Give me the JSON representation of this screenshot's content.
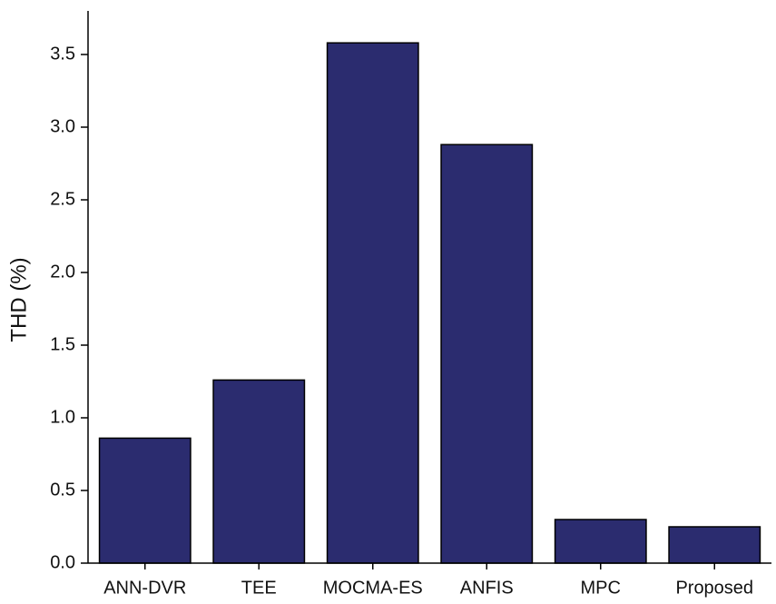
{
  "chart_data": {
    "type": "bar",
    "y_label": "THD (%)",
    "categories": [
      "ANN-DVR",
      "TEE",
      "MOCMA-ES",
      "ANFIS",
      "MPC",
      "Proposed"
    ],
    "values": [
      0.86,
      1.26,
      3.58,
      2.88,
      0.3,
      0.25
    ],
    "color": "#2b2c6f",
    "ylim": [
      0,
      3.8
    ],
    "yticks": [
      {
        "value": 0,
        "label": "0.0"
      },
      {
        "value": 0.5,
        "label": "0.5"
      },
      {
        "value": 1,
        "label": "1.0"
      },
      {
        "value": 1.5,
        "label": "1.5"
      },
      {
        "value": 2,
        "label": "2.0"
      },
      {
        "value": 2.5,
        "label": "2.5"
      },
      {
        "value": 3,
        "label": "3.0"
      },
      {
        "value": 3.5,
        "label": "3.5"
      }
    ],
    "grid": false
  }
}
